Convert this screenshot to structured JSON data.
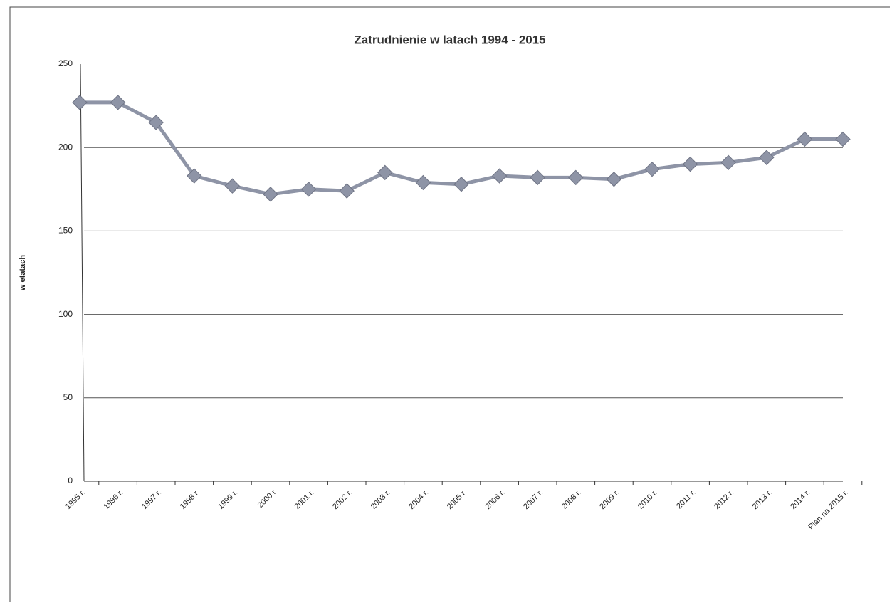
{
  "chart_data": {
    "type": "line",
    "title": "Zatrudnienie w latach 1994 - 2015",
    "y_label": "w etatach",
    "categories": [
      "1995 r.",
      "1996 r.",
      "1997 r.",
      "1998 r.",
      "1999 r.",
      "2000 r",
      "2001 r.",
      "2002 r.",
      "2003 r.",
      "2004 r.",
      "2005 r.",
      "2006 r.",
      "2007 r.",
      "2008 r.",
      "2009 r.",
      "2010 r.",
      "2011 r.",
      "2012 r.",
      "2013 r.",
      "2014 r.",
      "Plan na 2015 r."
    ],
    "series": [
      {
        "name": "Zatrudnienie",
        "color": "#8e94a6",
        "values": [
          227,
          227,
          215,
          183,
          177,
          172,
          175,
          174,
          185,
          179,
          178,
          183,
          182,
          182,
          181,
          187,
          190,
          191,
          194,
          205,
          205
        ]
      }
    ],
    "ylim": [
      0,
      250
    ],
    "yticks": [
      0,
      50,
      100,
      150,
      200,
      250
    ],
    "grid": true
  }
}
